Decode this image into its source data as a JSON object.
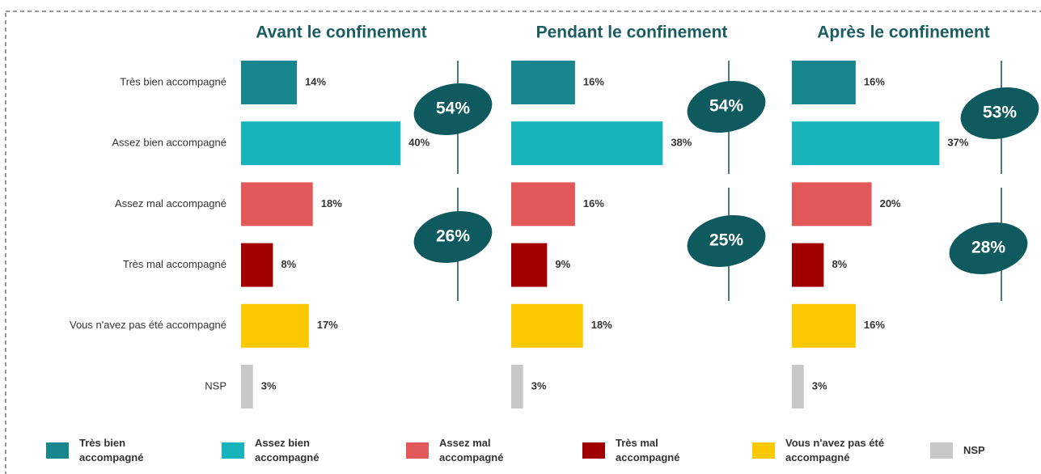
{
  "chart_data": {
    "type": "bar",
    "orientation": "horizontal",
    "categories": [
      "Très bien accompagné",
      "Assez bien accompagné",
      "Assez mal accompagné",
      "Très mal accompagné",
      "Vous n'avez pas été accompagné",
      "NSP"
    ],
    "colors": [
      "#17868f",
      "#17b3ba",
      "#e25858",
      "#a00000",
      "#fcc800",
      "#c8c8c8"
    ],
    "series": [
      {
        "name": "Avant le confinement",
        "values": [
          14,
          40,
          18,
          8,
          17,
          3
        ],
        "value_labels": [
          "14%",
          "40%",
          "18%",
          "8%",
          "17%",
          "3%"
        ],
        "annotations": [
          "54%",
          "26%"
        ]
      },
      {
        "name": "Pendant le confinement",
        "values": [
          16,
          38,
          16,
          9,
          18,
          3
        ],
        "value_labels": [
          "16%",
          "38%",
          "16%",
          "9%",
          "18%",
          "3%"
        ],
        "annotations": [
          "54%",
          "25%"
        ]
      },
      {
        "name": "Après le confinement",
        "values": [
          16,
          37,
          20,
          8,
          16,
          3
        ],
        "value_labels": [
          "16%",
          "37%",
          "20%",
          "8%",
          "16%",
          "3%"
        ],
        "annotations": [
          "53%",
          "28%"
        ]
      }
    ],
    "legend": "bottom"
  }
}
